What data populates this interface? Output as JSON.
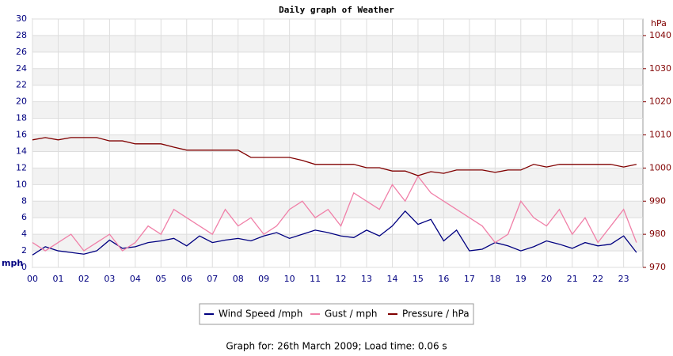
{
  "chart_data": {
    "type": "line",
    "title": "Daily graph of Weather",
    "ylabel": "mph",
    "y2label": "hPa",
    "x": [
      0,
      0.5,
      1,
      1.5,
      2,
      2.5,
      3,
      3.5,
      4,
      4.5,
      5,
      5.5,
      6,
      6.5,
      7,
      7.5,
      8,
      8.5,
      9,
      9.5,
      10,
      10.5,
      11,
      11.5,
      12,
      12.5,
      13,
      13.5,
      14,
      14.5,
      15,
      15.5,
      16,
      16.5,
      17,
      17.5,
      18,
      18.5,
      19,
      19.5,
      20,
      20.5,
      21,
      21.5,
      22,
      22.5,
      23,
      23.5
    ],
    "xlim": [
      0,
      23.75
    ],
    "xticks": [
      {
        "value": 0,
        "label": "00"
      },
      {
        "value": 1,
        "label": "01"
      },
      {
        "value": 2,
        "label": "02"
      },
      {
        "value": 3,
        "label": "03"
      },
      {
        "value": 4,
        "label": "04"
      },
      {
        "value": 5,
        "label": "05"
      },
      {
        "value": 6,
        "label": "06"
      },
      {
        "value": 7,
        "label": "07"
      },
      {
        "value": 8,
        "label": "08"
      },
      {
        "value": 9,
        "label": "09"
      },
      10,
      11,
      12,
      13,
      14,
      15,
      16,
      17,
      18,
      19,
      20,
      21,
      22,
      23
    ],
    "ylim": [
      0,
      30
    ],
    "yticks": [
      0,
      2,
      4,
      6,
      8,
      10,
      12,
      14,
      16,
      18,
      20,
      22,
      24,
      26,
      28,
      30
    ],
    "y2lim": [
      970,
      1045
    ],
    "y2ticks": [
      970,
      980,
      990,
      1000,
      1010,
      1020,
      1030,
      1040
    ],
    "grid": true,
    "series": [
      {
        "name": "Wind Speed /mph",
        "color": "#000080",
        "values": [
          1.5,
          2.5,
          2,
          1.8,
          1.6,
          2,
          3.3,
          2.3,
          2.5,
          3,
          3.2,
          3.5,
          2.6,
          3.8,
          3,
          3.3,
          3.5,
          3.2,
          3.8,
          4.2,
          3.5,
          4,
          4.5,
          4.2,
          3.8,
          3.6,
          4.5,
          3.8,
          5,
          6.8,
          5.2,
          5.8,
          3.2,
          4.5,
          2,
          2.2,
          3,
          2.6,
          2,
          2.5,
          3.2,
          2.8,
          2.3,
          3,
          2.6,
          2.8,
          3.8,
          1.8
        ]
      },
      {
        "name": "Gust / mph",
        "color": "#f080a8",
        "values": [
          3,
          2,
          3,
          4,
          2,
          3,
          4,
          2,
          3,
          5,
          4,
          7,
          6,
          5,
          4,
          7,
          5,
          6,
          4,
          5,
          7,
          8,
          6,
          7,
          5,
          9,
          8,
          7,
          10,
          8,
          11,
          9,
          8,
          7,
          6,
          5,
          3,
          4,
          8,
          6,
          5,
          7,
          4,
          6,
          3,
          5,
          7,
          3
        ]
      },
      {
        "name": "Pressure / hPa",
        "color": "#800000",
        "axis": "y2",
        "values": [
          1008.5,
          1009.2,
          1008.5,
          1009.2,
          1009.2,
          1009.2,
          1008.2,
          1008.2,
          1007.3,
          1007.3,
          1007.3,
          1006.3,
          1005.4,
          1005.4,
          1005.4,
          1005.4,
          1005.4,
          1003.2,
          1003.2,
          1003.2,
          1003.2,
          1002.3,
          1001.1,
          1001.1,
          1001.1,
          1001.1,
          1000.1,
          1000.1,
          999.1,
          999.1,
          997.7,
          998.9,
          998.4,
          999.4,
          999.4,
          999.4,
          998.7,
          999.4,
          999.4,
          1001.1,
          1000.3,
          1001.1,
          1001.1,
          1001.1,
          1001.1,
          1001.1,
          1000.3,
          1001.1
        ]
      }
    ]
  },
  "footer": "Graph for: 26th March 2009; Load time: 0.06 s"
}
